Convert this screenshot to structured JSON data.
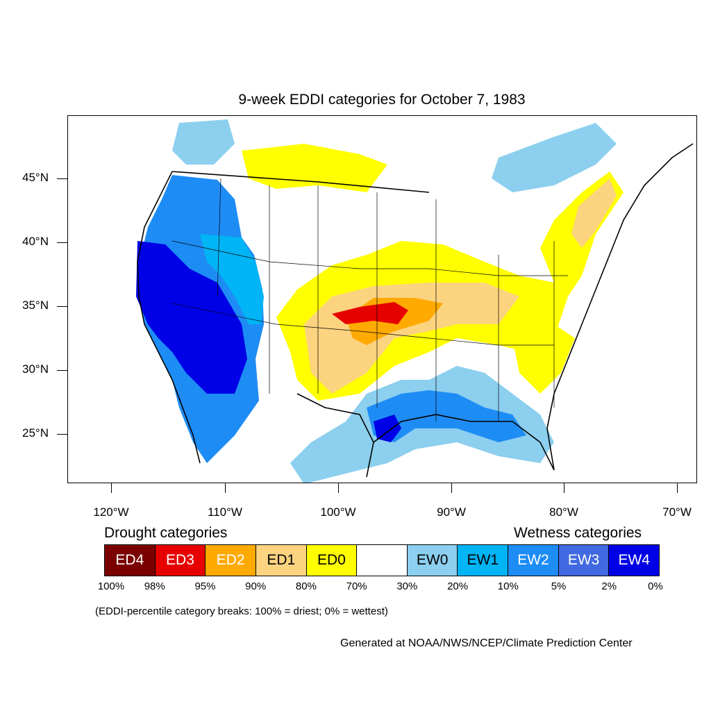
{
  "title": "9-week EDDI categories for October 7, 1983",
  "lat_labels": [
    "45°N",
    "40°N",
    "35°N",
    "30°N",
    "25°N"
  ],
  "lon_labels": [
    "120°W",
    "110°W",
    "100°W",
    "90°W",
    "80°W",
    "70°W"
  ],
  "legend": {
    "drought_heading": "Drought categories",
    "wetness_heading": "Wetness categories",
    "categories": [
      {
        "label": "ED4",
        "color": "#7a0000",
        "text_color": "#ffffff"
      },
      {
        "label": "ED3",
        "color": "#e60000",
        "text_color": "#ffffff"
      },
      {
        "label": "ED2",
        "color": "#ffaa00",
        "text_color": "#ffffff"
      },
      {
        "label": "ED1",
        "color": "#fcd37f",
        "text_color": "#000000"
      },
      {
        "label": "ED0",
        "color": "#ffff00",
        "text_color": "#000000"
      },
      {
        "label": "",
        "color": "#ffffff",
        "text_color": "#000000"
      },
      {
        "label": "EW0",
        "color": "#8ccfef",
        "text_color": "#000000"
      },
      {
        "label": "EW1",
        "color": "#00b4f5",
        "text_color": "#000000"
      },
      {
        "label": "EW2",
        "color": "#1e8cf5",
        "text_color": "#ffffff"
      },
      {
        "label": "EW3",
        "color": "#4169e1",
        "text_color": "#ffffff"
      },
      {
        "label": "EW4",
        "color": "#0000e6",
        "text_color": "#ffffff"
      }
    ],
    "percent_breaks": [
      "100%",
      "98%",
      "95%",
      "90%",
      "80%",
      "70%",
      "30%",
      "20%",
      "10%",
      "5%",
      "2%",
      "0%"
    ]
  },
  "note": "(EDDI-percentile category breaks: 100% = driest; 0% = wettest)",
  "credit": "Generated at NOAA/NWS/NCEP/Climate Prediction Center"
}
